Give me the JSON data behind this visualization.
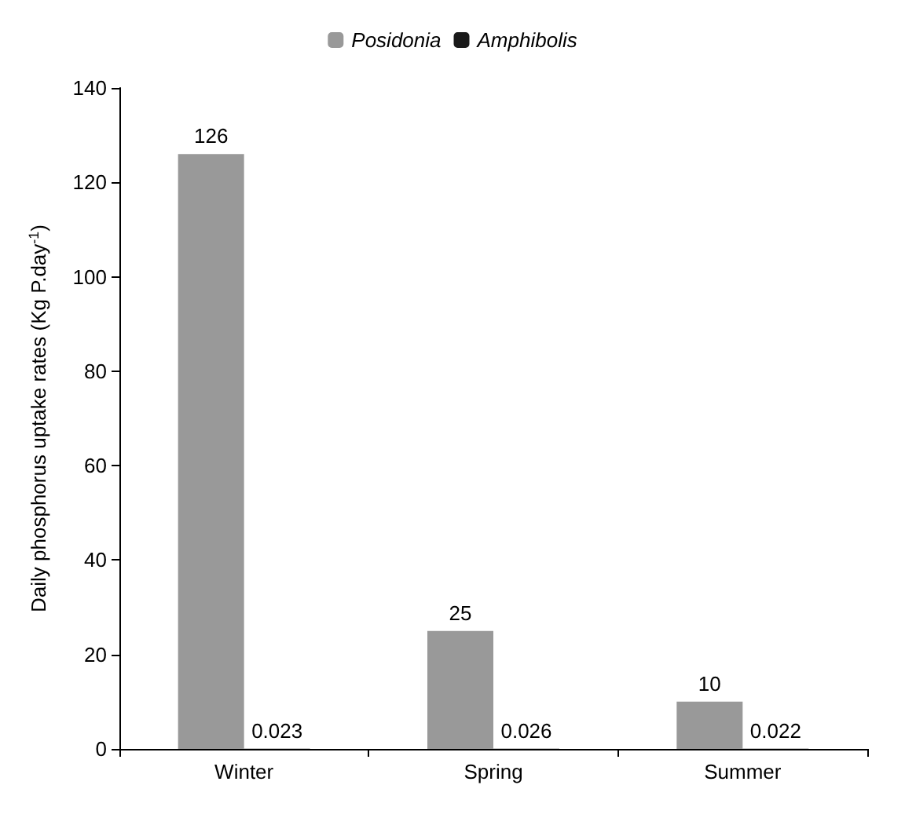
{
  "chart_data": {
    "type": "bar",
    "ylabel": "Daily phosphorus uptake rates (Kg P.day$^{-1}$)",
    "categories": [
      "Winter",
      "Spring",
      "Summer"
    ],
    "series": [
      {
        "name": "Posidonia",
        "color": "#999999",
        "values": [
          126,
          25,
          10
        ]
      },
      {
        "name": "Amphibolis",
        "color": "#1a1a1a",
        "values": [
          0.023,
          0.026,
          0.022
        ]
      }
    ],
    "ylim": [
      0,
      140
    ],
    "yticks": [
      0,
      20,
      40,
      60,
      80,
      100,
      120,
      140
    ],
    "grid": false,
    "legend": "top",
    "data_labels": true
  }
}
